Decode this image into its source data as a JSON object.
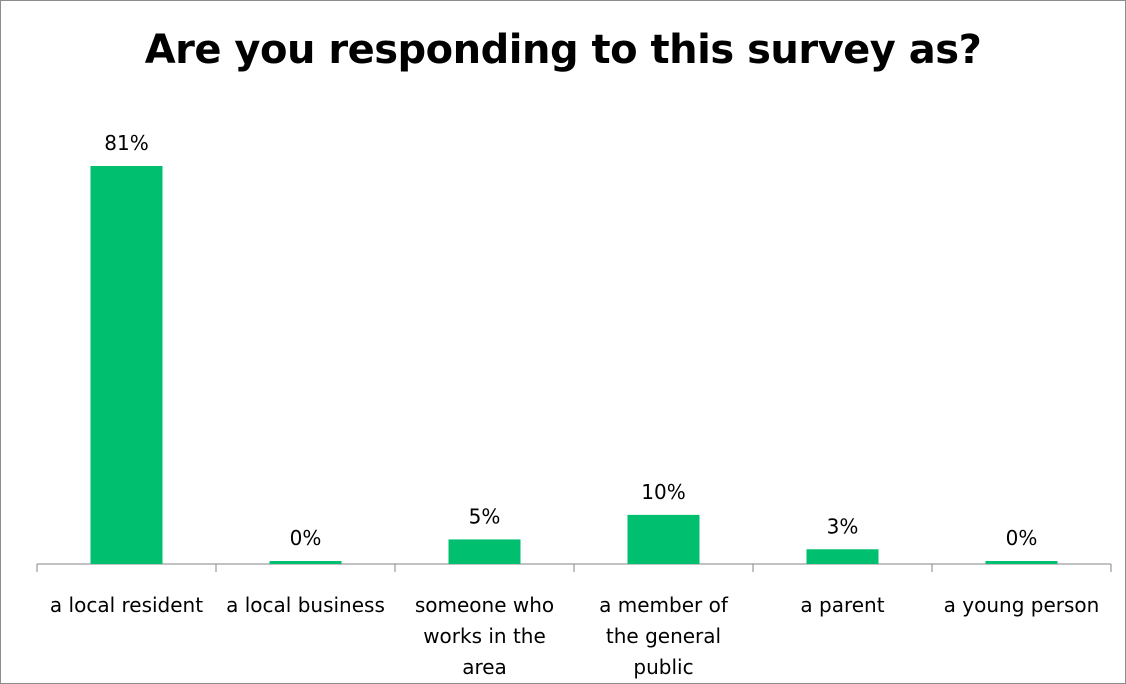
{
  "chart_data": {
    "type": "bar",
    "title": "Are you responding to this survey as?",
    "categories": [
      [
        "a local resident"
      ],
      [
        "a local business"
      ],
      [
        "someone who",
        "works in the",
        "area"
      ],
      [
        "a member of",
        "the general",
        "public"
      ],
      [
        "a parent"
      ],
      [
        "a young person"
      ]
    ],
    "values": [
      81,
      0,
      5,
      10,
      3,
      0
    ],
    "value_labels": [
      "81%",
      "0%",
      "5%",
      "10%",
      "3%",
      "0%"
    ],
    "ylim": [
      0,
      81
    ],
    "bar_color": "#00BF6F",
    "grid": false,
    "legend": "none",
    "xlabel": "",
    "ylabel": ""
  }
}
